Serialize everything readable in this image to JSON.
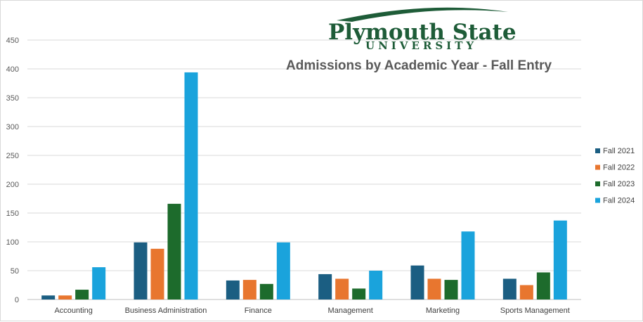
{
  "logo": {
    "name": "Plymouth State",
    "sub": "UNIVERSITY",
    "color": "#1e5c38"
  },
  "chart_data": {
    "type": "bar",
    "title": "Admissions by Academic Year - Fall Entry",
    "xlabel": "",
    "ylabel": "",
    "ylim": [
      0,
      450
    ],
    "yticks": [
      0,
      50,
      100,
      150,
      200,
      250,
      300,
      350,
      400,
      450
    ],
    "grid": true,
    "legend_position": "right",
    "categories": [
      "Accounting",
      "Business Administration",
      "Finance",
      "Management",
      "Marketing",
      "Sports Management"
    ],
    "series": [
      {
        "name": "Fall 2021",
        "color": "#1b5e82",
        "values": [
          7,
          99,
          33,
          44,
          59,
          36
        ]
      },
      {
        "name": "Fall 2022",
        "color": "#e8762f",
        "values": [
          7,
          88,
          34,
          36,
          36,
          25
        ]
      },
      {
        "name": "Fall 2023",
        "color": "#1d6b2c",
        "values": [
          17,
          166,
          27,
          19,
          34,
          47
        ]
      },
      {
        "name": "Fall 2024",
        "color": "#1aa3dc",
        "values": [
          56,
          394,
          99,
          50,
          118,
          137
        ]
      }
    ]
  }
}
